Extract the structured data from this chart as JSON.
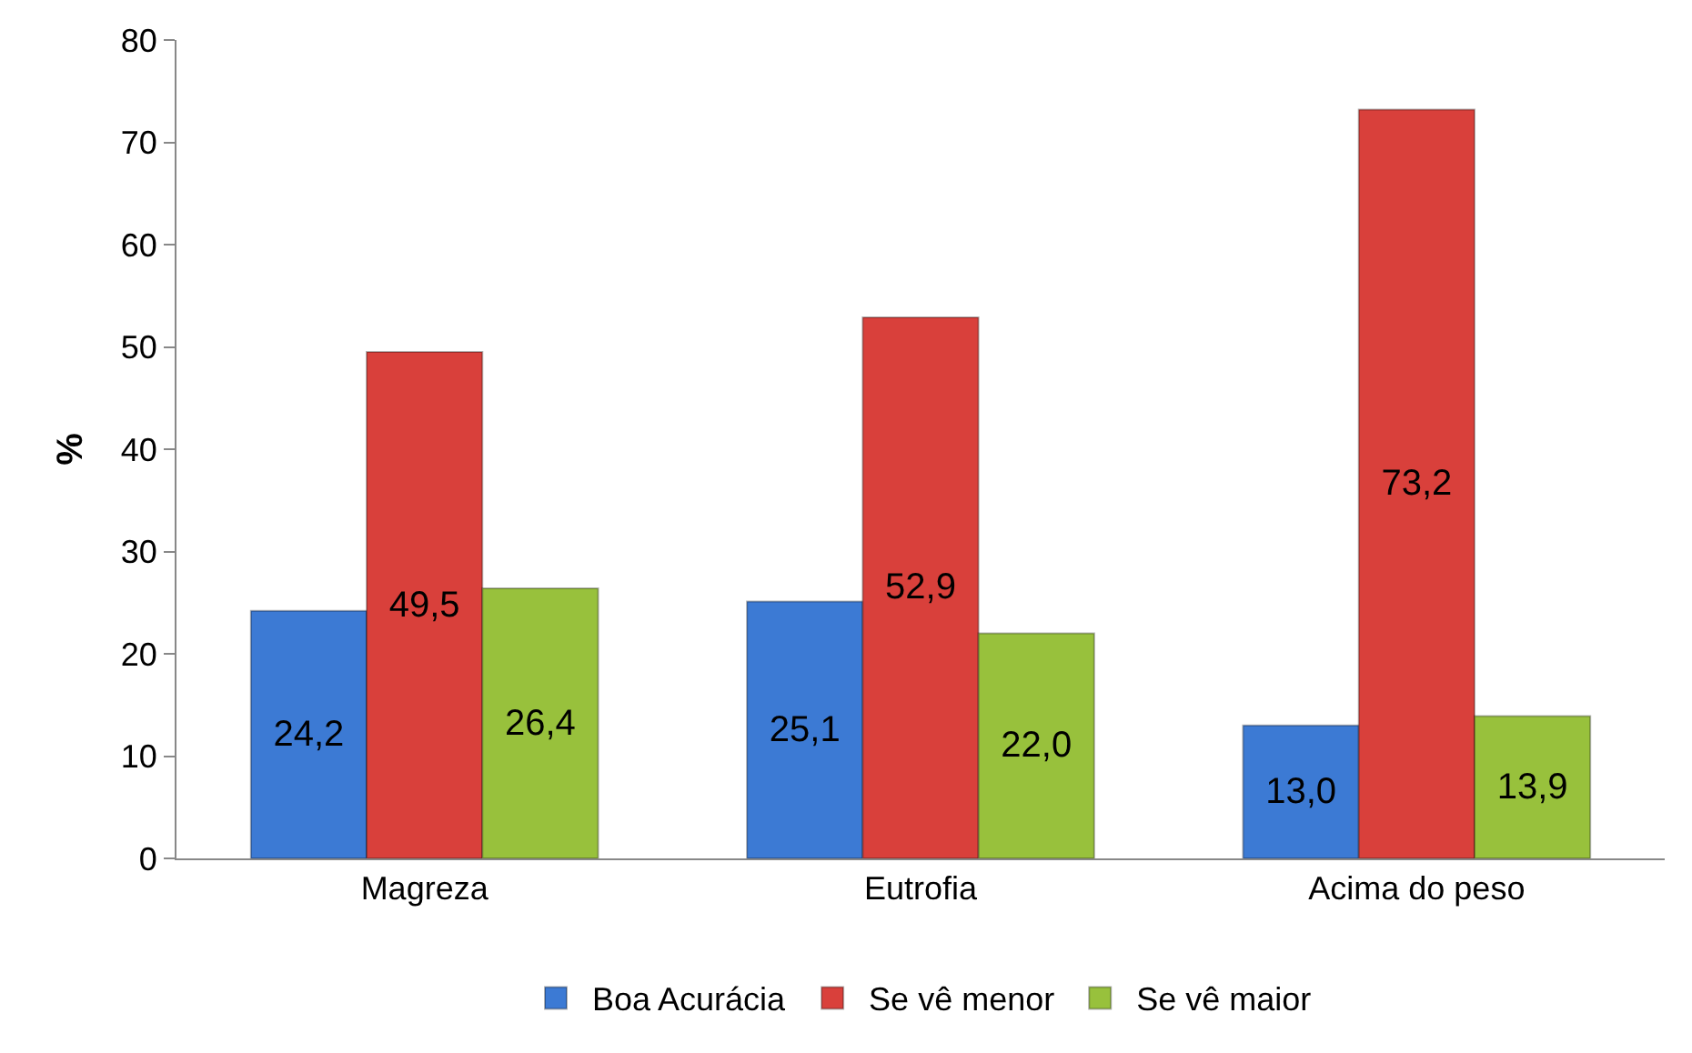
{
  "chart_data": {
    "type": "bar",
    "ylabel": "%",
    "categories": [
      "Magreza",
      "Eutrofia",
      "Acima do peso"
    ],
    "series": [
      {
        "name": "Boa Acurácia",
        "color": "#3c7ad4",
        "values": [
          24.2,
          25.1,
          13.0
        ],
        "value_labels": [
          "24,2",
          "25,1",
          "13,0"
        ]
      },
      {
        "name": "Se vê menor",
        "color": "#d9403b",
        "values": [
          49.5,
          52.9,
          73.2
        ],
        "value_labels": [
          "49,5",
          "52,9",
          "73,2"
        ]
      },
      {
        "name": "Se vê maior",
        "color": "#98c13c",
        "values": [
          26.4,
          22.0,
          13.9
        ],
        "value_labels": [
          "26,4",
          "22,0",
          "13,9"
        ]
      }
    ],
    "ylim": [
      0,
      80
    ],
    "yticks": [
      0,
      10,
      20,
      30,
      40,
      50,
      60,
      70,
      80
    ],
    "legend": "bottom"
  }
}
